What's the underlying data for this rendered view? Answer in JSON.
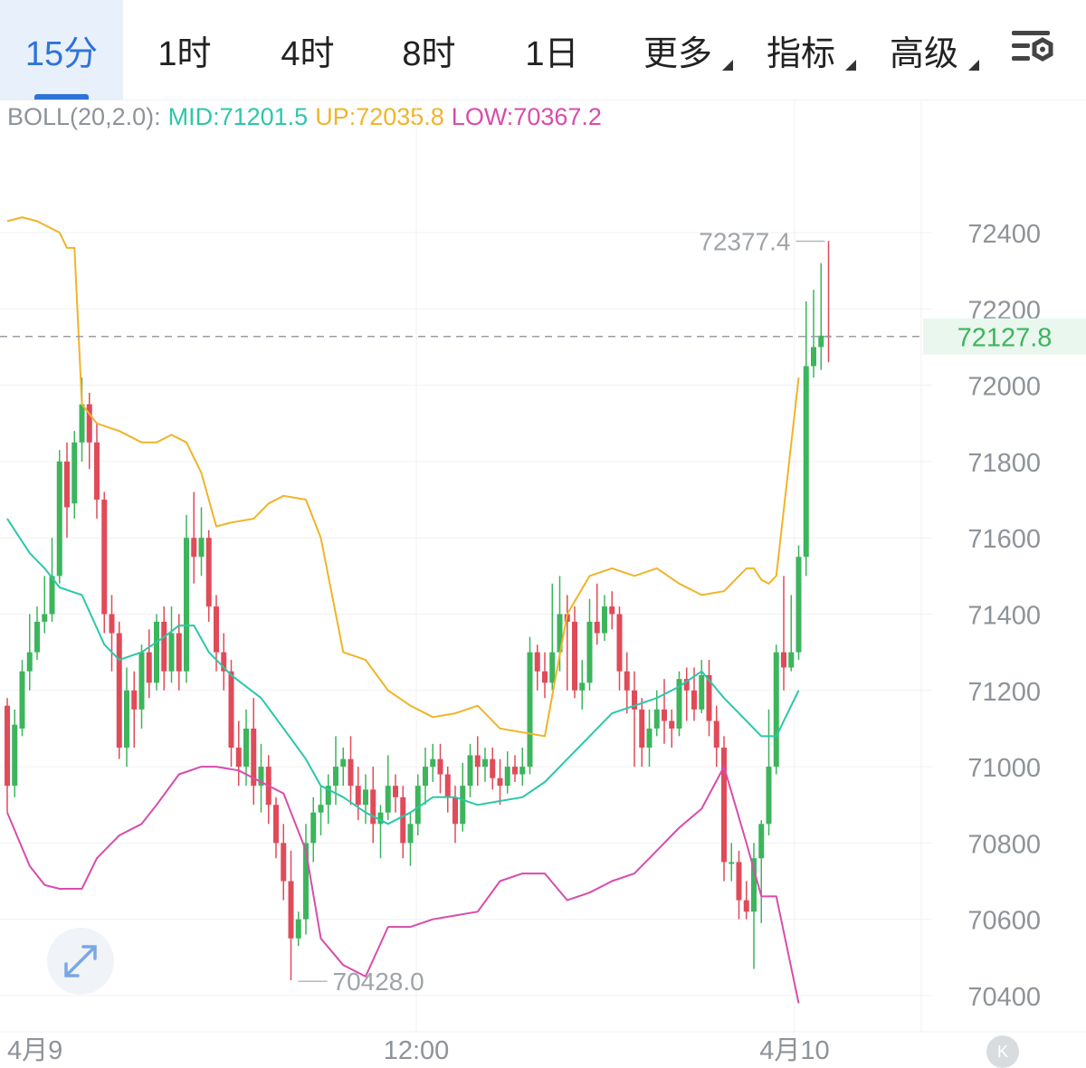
{
  "tabs": [
    {
      "label": "15分",
      "active": true
    },
    {
      "label": "1时"
    },
    {
      "label": "4时"
    },
    {
      "label": "8时"
    },
    {
      "label": "1日"
    },
    {
      "label": "更多",
      "dropdown": true
    },
    {
      "label": "指标",
      "dropdown": true
    },
    {
      "label": "高级",
      "dropdown": true
    }
  ],
  "settings_icon": "settings-icon",
  "indicator": {
    "name": "BOLL(20,2.0):",
    "mid": "MID:71201.5",
    "up": "UP:72035.8",
    "low": "LOW:70367.2"
  },
  "colors": {
    "up": "#3cb55c",
    "down": "#e04b5a",
    "mid": "#2cc7a9",
    "upper": "#f0b429",
    "lower": "#d84cac",
    "accent": "#2f73d8"
  },
  "chart_data": {
    "type": "candlestick",
    "y_ticks": [
      "72400",
      "72200",
      "72000",
      "71800",
      "71600",
      "71400",
      "71200",
      "71000",
      "70800",
      "70600",
      "70400"
    ],
    "x_ticks": [
      "4月9",
      "12:00",
      "4月10"
    ],
    "current_price": "72127.8",
    "high_label": "72377.4",
    "low_label": "70428.0",
    "candles": [
      [
        71160,
        70950,
        71180,
        70880
      ],
      [
        70950,
        71110,
        71150,
        70920
      ],
      [
        71100,
        71250,
        71280,
        71080
      ],
      [
        71250,
        71300,
        71400,
        71200
      ],
      [
        71300,
        71380,
        71420,
        71280
      ],
      [
        71380,
        71400,
        71500,
        71350
      ],
      [
        71400,
        71500,
        71600,
        71380
      ],
      [
        71500,
        71800,
        71830,
        71480
      ],
      [
        71800,
        71680,
        71850,
        71600
      ],
      [
        71690,
        71850,
        71880,
        71650
      ],
      [
        71850,
        71950,
        72020,
        71800
      ],
      [
        71950,
        71850,
        71980,
        71780
      ],
      [
        71850,
        71700,
        71900,
        71650
      ],
      [
        71700,
        71400,
        71720,
        71350
      ],
      [
        71400,
        71350,
        71450,
        71250
      ],
      [
        71350,
        71050,
        71380,
        71020
      ],
      [
        71050,
        71200,
        71260,
        71000
      ],
      [
        71200,
        71150,
        71250,
        71050
      ],
      [
        71150,
        71300,
        71320,
        71100
      ],
      [
        71300,
        71220,
        71360,
        71180
      ],
      [
        71220,
        71380,
        71400,
        71200
      ],
      [
        71380,
        71250,
        71420,
        71200
      ],
      [
        71250,
        71350,
        71420,
        71220
      ],
      [
        71350,
        71250,
        71400,
        71200
      ],
      [
        71250,
        71600,
        71660,
        71220
      ],
      [
        71600,
        71550,
        71720,
        71480
      ],
      [
        71550,
        71600,
        71680,
        71500
      ],
      [
        71600,
        71420,
        71620,
        71380
      ],
      [
        71420,
        71300,
        71450,
        71250
      ],
      [
        71300,
        71250,
        71350,
        71200
      ],
      [
        71250,
        71050,
        71280,
        71000
      ],
      [
        71050,
        71000,
        71120,
        70950
      ],
      [
        71000,
        71100,
        71150,
        70950
      ],
      [
        71100,
        70950,
        71180,
        70900
      ],
      [
        70950,
        71000,
        71060,
        70880
      ],
      [
        71000,
        70900,
        71030,
        70850
      ],
      [
        70900,
        70800,
        70920,
        70760
      ],
      [
        70800,
        70700,
        70850,
        70650
      ],
      [
        70700,
        70550,
        70780,
        70440
      ],
      [
        70550,
        70600,
        70620,
        70530
      ],
      [
        70600,
        70800,
        70850,
        70560
      ],
      [
        70800,
        70880,
        70920,
        70750
      ],
      [
        70880,
        70900,
        70950,
        70820
      ],
      [
        70900,
        70950,
        70980,
        70850
      ],
      [
        70950,
        71000,
        71080,
        70900
      ],
      [
        71000,
        71020,
        71050,
        70950
      ],
      [
        71020,
        70950,
        71080,
        70900
      ],
      [
        70950,
        70900,
        71000,
        70860
      ],
      [
        70900,
        70940,
        70980,
        70850
      ],
      [
        70940,
        70850,
        71000,
        70800
      ],
      [
        70850,
        70880,
        70900,
        70760
      ],
      [
        70880,
        70950,
        71030,
        70860
      ],
      [
        70950,
        70920,
        70980,
        70880
      ],
      [
        70920,
        70800,
        70950,
        70760
      ],
      [
        70800,
        70850,
        70880,
        70740
      ],
      [
        70850,
        70950,
        70980,
        70820
      ],
      [
        70950,
        71000,
        71050,
        70900
      ],
      [
        71000,
        71020,
        71060,
        70960
      ],
      [
        71020,
        70980,
        71060,
        70930
      ],
      [
        70980,
        70920,
        71000,
        70880
      ],
      [
        70920,
        70850,
        70950,
        70800
      ],
      [
        70850,
        70950,
        71010,
        70830
      ],
      [
        70950,
        71030,
        71060,
        70920
      ],
      [
        71030,
        71000,
        71080,
        70950
      ],
      [
        71000,
        71020,
        71050,
        70960
      ],
      [
        71020,
        70970,
        71050,
        70940
      ],
      [
        70970,
        70950,
        71020,
        70900
      ],
      [
        70950,
        71000,
        71040,
        70930
      ],
      [
        71000,
        70980,
        71030,
        70960
      ],
      [
        70980,
        71000,
        71050,
        70950
      ],
      [
        71000,
        71300,
        71340,
        70980
      ],
      [
        71300,
        71250,
        71320,
        71200
      ],
      [
        71250,
        71220,
        71300,
        71180
      ],
      [
        71220,
        71300,
        71480,
        71200
      ],
      [
        71300,
        71400,
        71500,
        71250
      ],
      [
        71400,
        71380,
        71450,
        71200
      ],
      [
        71380,
        71200,
        71420,
        71180
      ],
      [
        71200,
        71220,
        71280,
        71150
      ],
      [
        71220,
        71380,
        71440,
        71200
      ],
      [
        71380,
        71350,
        71480,
        71320
      ],
      [
        71350,
        71420,
        71450,
        71330
      ],
      [
        71420,
        71400,
        71460,
        71360
      ],
      [
        71400,
        71250,
        71420,
        71200
      ],
      [
        71250,
        71200,
        71300,
        71140
      ],
      [
        71200,
        71150,
        71250,
        71000
      ],
      [
        71150,
        71050,
        71180,
        71000
      ],
      [
        71050,
        71100,
        71150,
        71000
      ],
      [
        71100,
        71150,
        71200,
        71080
      ],
      [
        71150,
        71120,
        71230,
        71060
      ],
      [
        71120,
        71100,
        71150,
        71050
      ],
      [
        71100,
        71230,
        71250,
        71080
      ],
      [
        71230,
        71200,
        71260,
        71120
      ],
      [
        71200,
        71150,
        71260,
        71120
      ],
      [
        71150,
        71240,
        71280,
        71140
      ],
      [
        71240,
        71120,
        71280,
        71080
      ],
      [
        71120,
        71050,
        71160,
        71000
      ],
      [
        71050,
        70750,
        71080,
        70700
      ],
      [
        70750,
        70750,
        70800,
        70700
      ],
      [
        70750,
        70650,
        70780,
        70600
      ],
      [
        70650,
        70620,
        70700,
        70600
      ],
      [
        70620,
        70760,
        70800,
        70470
      ],
      [
        70760,
        70850,
        70860,
        70590
      ],
      [
        70850,
        71000,
        71150,
        70820
      ],
      [
        71000,
        71300,
        71320,
        70980
      ],
      [
        71300,
        71260,
        71500,
        71200
      ],
      [
        71260,
        71300,
        71450,
        71250
      ],
      [
        71300,
        71550,
        71580,
        71280
      ],
      [
        71550,
        72050,
        72220,
        71500
      ],
      [
        72050,
        72100,
        72250,
        72020
      ],
      [
        72100,
        72130,
        72320,
        72040
      ],
      [
        72130,
        72128,
        72378,
        72060
      ]
    ],
    "mid": [
      [
        0,
        71650
      ],
      [
        3,
        71560
      ],
      [
        5,
        71520
      ],
      [
        7,
        71470
      ],
      [
        10,
        71450
      ],
      [
        13,
        71320
      ],
      [
        15,
        71280
      ],
      [
        18,
        71300
      ],
      [
        21,
        71340
      ],
      [
        23,
        71370
      ],
      [
        25,
        71370
      ],
      [
        27,
        71300
      ],
      [
        30,
        71240
      ],
      [
        34,
        71180
      ],
      [
        37,
        71100
      ],
      [
        40,
        71020
      ],
      [
        42,
        70950
      ],
      [
        45,
        70920
      ],
      [
        48,
        70880
      ],
      [
        51,
        70850
      ],
      [
        54,
        70880
      ],
      [
        57,
        70920
      ],
      [
        60,
        70920
      ],
      [
        63,
        70900
      ],
      [
        66,
        70910
      ],
      [
        69,
        70920
      ],
      [
        72,
        70960
      ],
      [
        75,
        71020
      ],
      [
        78,
        71080
      ],
      [
        81,
        71140
      ],
      [
        84,
        71160
      ],
      [
        87,
        71180
      ],
      [
        90,
        71210
      ],
      [
        93,
        71250
      ],
      [
        96,
        71180
      ],
      [
        99,
        71120
      ],
      [
        101,
        71080
      ],
      [
        103,
        71080
      ],
      [
        106,
        71200
      ]
    ],
    "upper": [
      [
        0,
        72430
      ],
      [
        2,
        72440
      ],
      [
        4,
        72430
      ],
      [
        7,
        72400
      ],
      [
        8,
        72360
      ],
      [
        9,
        72360
      ],
      [
        10,
        71950
      ],
      [
        12,
        71900
      ],
      [
        15,
        71880
      ],
      [
        18,
        71850
      ],
      [
        20,
        71850
      ],
      [
        22,
        71870
      ],
      [
        24,
        71850
      ],
      [
        26,
        71770
      ],
      [
        28,
        71630
      ],
      [
        30,
        71640
      ],
      [
        33,
        71650
      ],
      [
        35,
        71690
      ],
      [
        37,
        71710
      ],
      [
        40,
        71700
      ],
      [
        42,
        71600
      ],
      [
        45,
        71300
      ],
      [
        48,
        71280
      ],
      [
        51,
        71200
      ],
      [
        54,
        71160
      ],
      [
        57,
        71130
      ],
      [
        60,
        71140
      ],
      [
        63,
        71160
      ],
      [
        66,
        71100
      ],
      [
        69,
        71090
      ],
      [
        72,
        71080
      ],
      [
        75,
        71400
      ],
      [
        78,
        71500
      ],
      [
        81,
        71520
      ],
      [
        84,
        71500
      ],
      [
        87,
        71520
      ],
      [
        90,
        71480
      ],
      [
        93,
        71450
      ],
      [
        96,
        71460
      ],
      [
        99,
        71520
      ],
      [
        100,
        71520
      ],
      [
        101,
        71490
      ],
      [
        102,
        71480
      ],
      [
        103,
        71500
      ],
      [
        106,
        72020
      ]
    ],
    "lower": [
      [
        0,
        70880
      ],
      [
        3,
        70740
      ],
      [
        5,
        70690
      ],
      [
        7,
        70680
      ],
      [
        10,
        70680
      ],
      [
        12,
        70760
      ],
      [
        15,
        70820
      ],
      [
        18,
        70850
      ],
      [
        20,
        70900
      ],
      [
        23,
        70980
      ],
      [
        26,
        71000
      ],
      [
        28,
        71000
      ],
      [
        31,
        70990
      ],
      [
        34,
        70960
      ],
      [
        37,
        70930
      ],
      [
        40,
        70780
      ],
      [
        42,
        70550
      ],
      [
        45,
        70480
      ],
      [
        48,
        70450
      ],
      [
        51,
        70580
      ],
      [
        54,
        70580
      ],
      [
        57,
        70600
      ],
      [
        60,
        70610
      ],
      [
        63,
        70620
      ],
      [
        66,
        70700
      ],
      [
        69,
        70720
      ],
      [
        72,
        70720
      ],
      [
        75,
        70650
      ],
      [
        78,
        70670
      ],
      [
        81,
        70700
      ],
      [
        84,
        70720
      ],
      [
        87,
        70780
      ],
      [
        90,
        70840
      ],
      [
        93,
        70890
      ],
      [
        96,
        71000
      ],
      [
        99,
        70800
      ],
      [
        101,
        70660
      ],
      [
        103,
        70660
      ],
      [
        106,
        70380
      ]
    ]
  }
}
